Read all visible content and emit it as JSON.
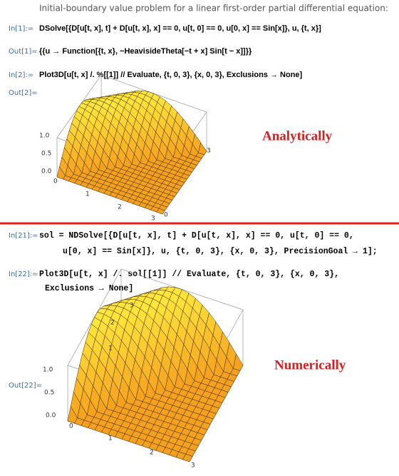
{
  "header": "Initial-boundary value problem for a linear first-order partial differential equation:",
  "cells": [
    {
      "label": "In[1]:=",
      "lines": [
        "DSolve[{D[u[t, x], t] + D[u[t, x], x] == 0, u[t, 0] == 0, u[0, x] == Sin[x]}, u, {t, x}]"
      ]
    },
    {
      "label": "Out[1]=",
      "lines": [
        "{{u → Function[{t, x}, −HeavisideTheta[−t + x] Sin[t − x]]}}"
      ]
    },
    {
      "label": "In[2]:=",
      "lines": [
        "Plot3D[u[t, x] /. %[[1]] // Evaluate, {t, 0, 3}, {x, 0, 3}, Exclusions → None]"
      ]
    },
    {
      "label": "Out[2]=",
      "lines": []
    },
    {
      "label": "In[21]:=",
      "lines": [
        "sol = NDSolve[{D[u[t, x], t] + D[u[t, x], x] == 0, u[t, 0] == 0,",
        "u[0, x] == Sin[x]}, u, {t, 0, 3}, {x, 0, 3}, PrecisionGoal → 1];"
      ]
    },
    {
      "label": "In[22]:=",
      "lines": [
        "Plot3D[u[t, x] /. sol[[1]] // Evaluate, {t, 0, 3}, {x, 0, 3},",
        "Exclusions → None]"
      ]
    },
    {
      "label": "Out[22]=",
      "lines": []
    }
  ],
  "plots": [
    {
      "annotation": "Analytically",
      "ticks": [
        "1.0",
        "0.5",
        "0.0",
        "0",
        "1",
        "2",
        "3",
        "3",
        "0"
      ]
    },
    {
      "annotation": "Numerically",
      "ticks": [
        "3",
        "2",
        "1",
        "1.0",
        "0.5",
        "0.0",
        "0",
        "1",
        "2",
        "3"
      ]
    }
  ]
}
